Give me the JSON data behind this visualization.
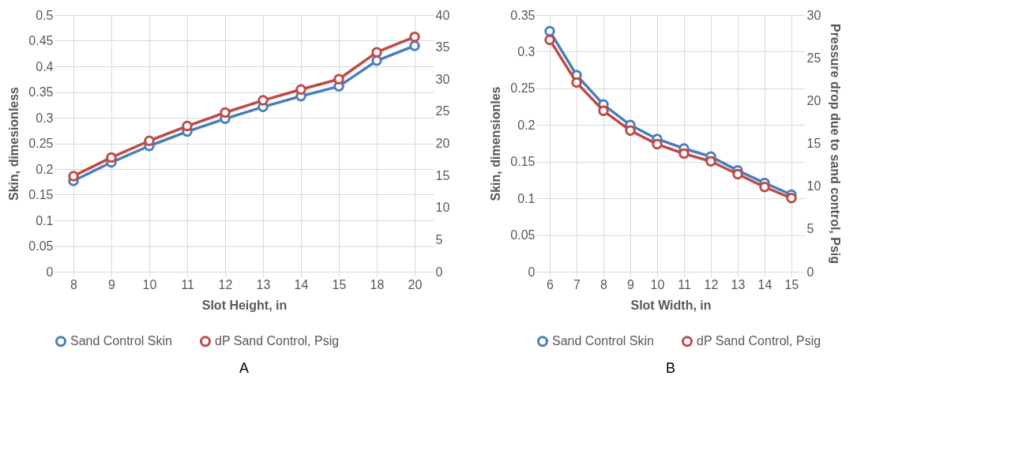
{
  "chart_data": [
    {
      "type": "line",
      "categories": [
        "8",
        "9",
        "10",
        "11",
        "12",
        "13",
        "14",
        "15",
        "18",
        "20"
      ],
      "xlabel": "Slot Height, in",
      "ylabel": "Skin, dimesionless",
      "ylim": [
        0,
        0.5
      ],
      "yticks": [
        0,
        0.05,
        0.1,
        0.15,
        0.2,
        0.25,
        0.3,
        0.35,
        0.4,
        0.45,
        0.5
      ],
      "y2lim": [
        0,
        40
      ],
      "y2ticks": [
        0,
        5,
        10,
        15,
        20,
        25,
        30,
        35,
        40
      ],
      "grid": true,
      "legend": "bottom",
      "marker": "circle",
      "annotations": [
        "A"
      ],
      "series": [
        {
          "name": "Sand Control Skin",
          "color": "#4a7ebb",
          "values": [
            0.177,
            0.213,
            0.245,
            0.273,
            0.298,
            0.321,
            0.342,
            0.361,
            0.411,
            0.44
          ]
        },
        {
          "name": "dP Sand Control, Psig",
          "color": "#be4b48",
          "axis": "y2",
          "values": [
            14.9,
            17.8,
            20.4,
            22.7,
            24.8,
            26.7,
            28.4,
            30.0,
            34.2,
            36.6
          ]
        }
      ]
    },
    {
      "type": "line",
      "categories": [
        "6",
        "7",
        "8",
        "9",
        "10",
        "11",
        "12",
        "13",
        "14",
        "15"
      ],
      "xlabel": "Slot Width, in",
      "ylabel": "Skin, dimensionles",
      "y2label": "Pressure drop due to sand control, Psig",
      "ylim": [
        0,
        0.35
      ],
      "yticks": [
        0,
        0.05,
        0.1,
        0.15,
        0.2,
        0.25,
        0.3,
        0.35
      ],
      "y2lim": [
        0,
        30
      ],
      "y2ticks": [
        0,
        5,
        10,
        15,
        20,
        25,
        30
      ],
      "grid": true,
      "legend": "bottom",
      "marker": "circle",
      "annotations": [
        "B"
      ],
      "series": [
        {
          "name": "Sand Control Skin",
          "color": "#4a7ebb",
          "values": [
            0.328,
            0.268,
            0.228,
            0.2,
            0.181,
            0.168,
            0.157,
            0.138,
            0.121,
            0.105
          ]
        },
        {
          "name": "dP Sand Control, Psig",
          "color": "#be4b48",
          "axis": "y2",
          "values": [
            27.1,
            22.1,
            18.8,
            16.5,
            14.9,
            13.8,
            12.9,
            11.4,
            9.9,
            8.6
          ]
        }
      ]
    }
  ]
}
